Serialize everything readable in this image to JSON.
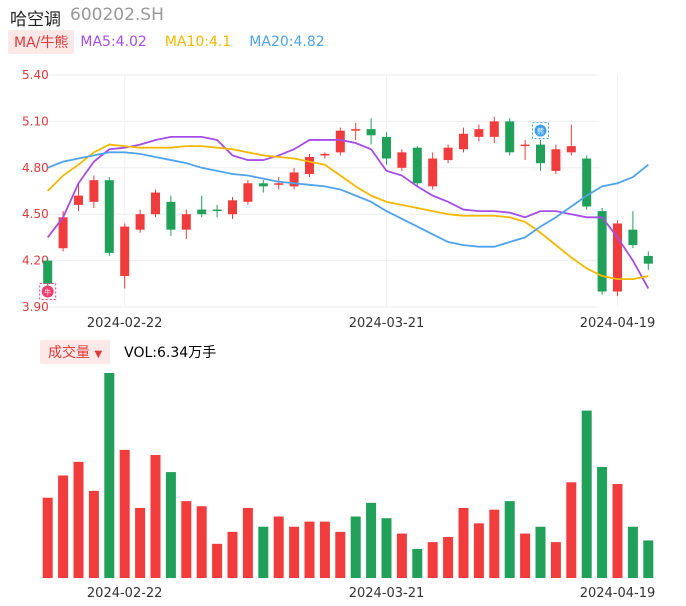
{
  "header": {
    "name": "哈空调",
    "code": "600202.SH"
  },
  "legend": {
    "ma_label": "MA/牛熊",
    "ma5": "MA5:4.02",
    "ma10": "MA10:4.1",
    "ma20": "MA20:4.82",
    "colors": {
      "ma5": "#a64ee8",
      "ma10": "#f5b800",
      "ma20": "#4fa3ea",
      "up": "#f03c3c",
      "down": "#21a05a"
    }
  },
  "volume_legend": {
    "label": "成交量",
    "value": "VOL:6.34万手"
  },
  "chart_data": [
    {
      "type": "candlestick",
      "y_ticks": [
        "5.40",
        "5.10",
        "4.80",
        "4.50",
        "4.20",
        "3.90"
      ],
      "ylim": [
        3.9,
        5.4
      ],
      "x_tick_labels": [
        "2024-02-22",
        "2024-03-21",
        "2024-04-19"
      ],
      "x_tick_index": [
        5,
        22,
        37
      ],
      "grid": true,
      "candles": [
        {
          "o": 4.2,
          "c": 4.05,
          "h": 4.22,
          "l": 4.02
        },
        {
          "o": 4.28,
          "c": 4.48,
          "h": 4.52,
          "l": 4.26
        },
        {
          "o": 4.56,
          "c": 4.62,
          "h": 4.7,
          "l": 4.52
        },
        {
          "o": 4.58,
          "c": 4.72,
          "h": 4.75,
          "l": 4.54
        },
        {
          "o": 4.72,
          "c": 4.25,
          "h": 4.74,
          "l": 4.23
        },
        {
          "o": 4.1,
          "c": 4.42,
          "h": 4.44,
          "l": 4.02
        },
        {
          "o": 4.4,
          "c": 4.5,
          "h": 4.53,
          "l": 4.38
        },
        {
          "o": 4.5,
          "c": 4.64,
          "h": 4.66,
          "l": 4.48
        },
        {
          "o": 4.58,
          "c": 4.4,
          "h": 4.62,
          "l": 4.36
        },
        {
          "o": 4.4,
          "c": 4.5,
          "h": 4.53,
          "l": 4.34
        },
        {
          "o": 4.53,
          "c": 4.5,
          "h": 4.62,
          "l": 4.48
        },
        {
          "o": 4.53,
          "c": 4.52,
          "h": 4.56,
          "l": 4.48
        },
        {
          "o": 4.5,
          "c": 4.59,
          "h": 4.61,
          "l": 4.47
        },
        {
          "o": 4.58,
          "c": 4.7,
          "h": 4.72,
          "l": 4.56
        },
        {
          "o": 4.7,
          "c": 4.68,
          "h": 4.72,
          "l": 4.64
        },
        {
          "o": 4.69,
          "c": 4.7,
          "h": 4.74,
          "l": 4.66
        },
        {
          "o": 4.68,
          "c": 4.77,
          "h": 4.8,
          "l": 4.66
        },
        {
          "o": 4.76,
          "c": 4.87,
          "h": 4.89,
          "l": 4.74
        },
        {
          "o": 4.88,
          "c": 4.89,
          "h": 4.9,
          "l": 4.86
        },
        {
          "o": 4.9,
          "c": 5.04,
          "h": 5.06,
          "l": 4.88
        },
        {
          "o": 5.04,
          "c": 5.05,
          "h": 5.09,
          "l": 4.98
        },
        {
          "o": 5.05,
          "c": 5.01,
          "h": 5.12,
          "l": 4.95
        },
        {
          "o": 5.0,
          "c": 4.86,
          "h": 5.03,
          "l": 4.82
        },
        {
          "o": 4.8,
          "c": 4.9,
          "h": 4.92,
          "l": 4.78
        },
        {
          "o": 4.93,
          "c": 4.7,
          "h": 4.94,
          "l": 4.68
        },
        {
          "o": 4.68,
          "c": 4.86,
          "h": 4.9,
          "l": 4.66
        },
        {
          "o": 4.85,
          "c": 4.93,
          "h": 4.95,
          "l": 4.83
        },
        {
          "o": 4.92,
          "c": 5.02,
          "h": 5.06,
          "l": 4.9
        },
        {
          "o": 5.0,
          "c": 5.05,
          "h": 5.08,
          "l": 4.97
        },
        {
          "o": 5.0,
          "c": 5.1,
          "h": 5.13,
          "l": 4.96
        },
        {
          "o": 5.1,
          "c": 4.9,
          "h": 5.12,
          "l": 4.88
        },
        {
          "o": 4.95,
          "c": 4.95,
          "h": 4.98,
          "l": 4.85
        },
        {
          "o": 4.95,
          "c": 4.83,
          "h": 4.98,
          "l": 4.78
        },
        {
          "o": 4.78,
          "c": 4.92,
          "h": 4.95,
          "l": 4.76
        },
        {
          "o": 4.9,
          "c": 4.94,
          "h": 5.08,
          "l": 4.88
        },
        {
          "o": 4.86,
          "c": 4.55,
          "h": 4.88,
          "l": 4.53
        },
        {
          "o": 4.52,
          "c": 4.0,
          "h": 4.54,
          "l": 3.98
        },
        {
          "o": 4.0,
          "c": 4.44,
          "h": 4.46,
          "l": 3.97
        },
        {
          "o": 4.4,
          "c": 4.3,
          "h": 4.52,
          "l": 4.28
        },
        {
          "o": 4.23,
          "c": 4.18,
          "h": 4.26,
          "l": 4.14
        }
      ],
      "markers": [
        {
          "index": 0,
          "value": 4.0,
          "label": "牛"
        },
        {
          "index": 32,
          "value": 5.04,
          "label": "熊"
        }
      ],
      "series": [
        {
          "name": "MA5",
          "values": [
            4.35,
            4.48,
            4.7,
            4.84,
            4.92,
            4.93,
            4.95,
            4.98,
            5.0,
            5.0,
            5.0,
            4.98,
            4.88,
            4.85,
            4.85,
            4.88,
            4.92,
            4.98,
            4.98,
            4.98,
            4.96,
            4.92,
            4.78,
            4.75,
            4.68,
            4.62,
            4.58,
            4.53,
            4.52,
            4.52,
            4.51,
            4.48,
            4.52,
            4.52,
            4.5,
            4.48,
            4.48,
            4.35,
            4.2,
            4.02
          ]
        },
        {
          "name": "MA10",
          "values": [
            4.65,
            4.75,
            4.82,
            4.9,
            4.95,
            4.94,
            4.93,
            4.93,
            4.93,
            4.94,
            4.94,
            4.93,
            4.92,
            4.9,
            4.88,
            4.87,
            4.86,
            4.84,
            4.82,
            4.75,
            4.68,
            4.62,
            4.58,
            4.56,
            4.54,
            4.52,
            4.5,
            4.49,
            4.49,
            4.49,
            4.48,
            4.45,
            4.38,
            4.3,
            4.22,
            4.15,
            4.1,
            4.08,
            4.08,
            4.1
          ]
        },
        {
          "name": "MA20",
          "values": [
            4.8,
            4.84,
            4.86,
            4.88,
            4.9,
            4.9,
            4.89,
            4.87,
            4.85,
            4.83,
            4.8,
            4.78,
            4.76,
            4.75,
            4.73,
            4.71,
            4.7,
            4.69,
            4.68,
            4.66,
            4.62,
            4.58,
            4.52,
            4.47,
            4.42,
            4.37,
            4.32,
            4.3,
            4.29,
            4.29,
            4.32,
            4.35,
            4.42,
            4.48,
            4.55,
            4.62,
            4.68,
            4.7,
            4.74,
            4.82
          ]
        }
      ]
    },
    {
      "type": "bar",
      "title": "成交量",
      "values": [
        47,
        60,
        68,
        51,
        120,
        75,
        41,
        72,
        62,
        45,
        42,
        20,
        27,
        41,
        30,
        36,
        30,
        33,
        33,
        27,
        36,
        44,
        35,
        26,
        17,
        21,
        24,
        41,
        32,
        40,
        45,
        26,
        30,
        21,
        56,
        98,
        65,
        55,
        30,
        22
      ],
      "colors": [
        "up",
        "up",
        "up",
        "up",
        "down",
        "up",
        "up",
        "up",
        "down",
        "up",
        "up",
        "up",
        "up",
        "up",
        "down",
        "up",
        "up",
        "up",
        "up",
        "up",
        "down",
        "down",
        "down",
        "up",
        "down",
        "up",
        "up",
        "up",
        "up",
        "up",
        "down",
        "up",
        "down",
        "up",
        "up",
        "down",
        "down",
        "up",
        "down",
        "down"
      ]
    }
  ]
}
